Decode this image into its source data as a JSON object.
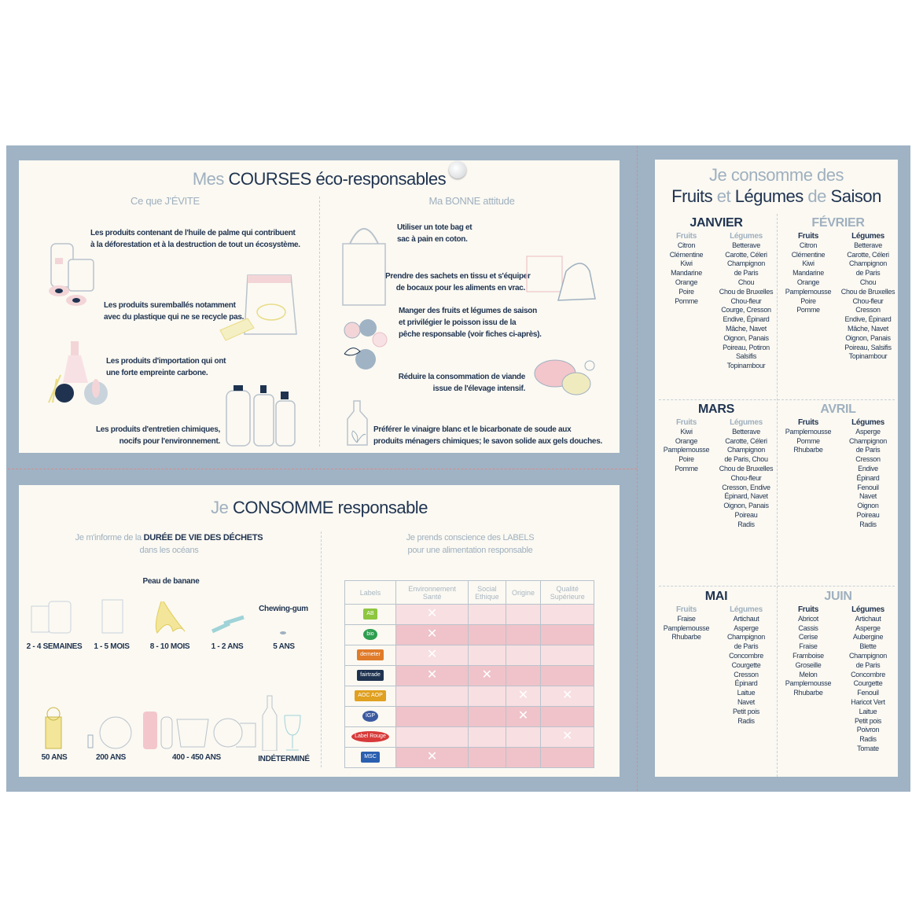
{
  "courses": {
    "title_light": "Mes",
    "title_dark": "COURSES",
    "title_rest": "éco-responsables",
    "avoid_title": "Ce que J'ÉVITE",
    "avoid": [
      [
        "Les produits contenant de l'huile de palme qui contribuent",
        "à la déforestation et à la destruction de tout un écosystème."
      ],
      [
        "Les produits suremballés notamment",
        "avec du plastique qui ne se recycle pas."
      ],
      [
        "Les produits d'importation qui ont",
        "une forte empreinte carbone."
      ],
      [
        "Les produits d'entretien chimiques,",
        "nocifs pour l'environnement."
      ]
    ],
    "good_title": "Ma BONNE attitude",
    "good": [
      [
        "Utiliser un tote bag et",
        "sac à pain en coton."
      ],
      [
        "Prendre des sachets en tissu et s'équiper",
        "de bocaux pour les aliments en vrac."
      ],
      [
        "Manger des fruits et légumes de saison",
        "et privilégier le poisson issu de la",
        "pêche responsable (voir fiches ci-après)."
      ],
      [
        "Réduire la consommation de viande",
        "issue de l'élevage intensif."
      ],
      [
        "Préférer le vinaigre blanc et le bicarbonate de soude aux",
        "produits ménagers chimiques; le savon solide aux gels douches."
      ]
    ]
  },
  "consomme": {
    "title_light": "Je",
    "title_dark": "CONSOMME",
    "title_rest": "responsable",
    "waste_title_light": "Je m'informe de la",
    "waste_title_dark": "DURÉE DE VIE DES DÉCHETS",
    "waste_title_2": "dans les océans",
    "banana_label": "Peau de banane",
    "gum_label": "Chewing-gum",
    "durations": [
      "2 - 4 SEMAINES",
      "1 - 5 MOIS",
      "8 - 10 MOIS",
      "1 - 2 ANS",
      "5 ANS",
      "50 ANS",
      "200 ANS",
      "400 - 450 ANS",
      "INDÉTERMINÉ"
    ],
    "labels_title": [
      "Je prends conscience des LABELS",
      "pour une alimentation responsable"
    ],
    "table": {
      "headers": [
        "Labels",
        "Environnement\nSanté",
        "Social\nEthique",
        "Origine",
        "Qualité\nSupérieure"
      ],
      "rows": [
        {
          "logo": "AB",
          "color": "#8dc63f",
          "marks": [
            true,
            false,
            false,
            false
          ]
        },
        {
          "logo": "bio",
          "color": "#2e9e4f",
          "marks": [
            true,
            false,
            false,
            false
          ]
        },
        {
          "logo": "demeter",
          "color": "#e07b2a",
          "marks": [
            true,
            false,
            false,
            false
          ]
        },
        {
          "logo": "fairtrade",
          "color": "#1f3350",
          "marks": [
            true,
            true,
            false,
            false
          ]
        },
        {
          "logo": "AOC AOP",
          "color": "#e0a020",
          "marks": [
            false,
            false,
            true,
            true
          ]
        },
        {
          "logo": "IGP",
          "color": "#3b5aa0",
          "marks": [
            false,
            false,
            true,
            false
          ]
        },
        {
          "logo": "Label Rouge",
          "color": "#d83a3a",
          "marks": [
            false,
            false,
            false,
            true
          ]
        },
        {
          "logo": "MSC",
          "color": "#2a5fb0",
          "marks": [
            true,
            false,
            false,
            false
          ]
        }
      ]
    }
  },
  "saison": {
    "title_1": "Je consomme des",
    "title_2": [
      "Fruits",
      "et",
      "Légumes",
      "de",
      "Saison"
    ],
    "fruits_header": "Fruits",
    "legumes_header": "Légumes",
    "months": [
      {
        "name": "JANVIER",
        "fruits": [
          "Citron",
          "Clémentine",
          "Kiwi",
          "Mandarine",
          "Orange",
          "Poire",
          "Pomme"
        ],
        "legumes": [
          "Betterave",
          "Carotte, Céleri",
          "Champignon",
          "de Paris",
          "Chou",
          "Chou de Bruxelles",
          "Chou-fleur",
          "Courge, Cresson",
          "Endive, Épinard",
          "Mâche, Navet",
          "Oignon, Panais",
          "Poireau, Potiron",
          "Salsifis",
          "Topinambour"
        ]
      },
      {
        "name": "FÉVRIER",
        "fruits": [
          "Citron",
          "Clémentine",
          "Kiwi",
          "Mandarine",
          "Orange",
          "Pamplemousse",
          "Poire",
          "Pomme"
        ],
        "legumes": [
          "Betterave",
          "Carotte, Céleri",
          "Champignon",
          "de Paris",
          "Chou",
          "Chou de Bruxelles",
          "Chou-fleur",
          "Cresson",
          "Endive, Épinard",
          "Mâche, Navet",
          "Oignon, Panais",
          "Poireau, Salsifis",
          "Topinambour"
        ]
      },
      {
        "name": "MARS",
        "fruits": [
          "Kiwi",
          "Orange",
          "Pamplemousse",
          "Poire",
          "Pomme"
        ],
        "legumes": [
          "Betterave",
          "Carotte, Céleri",
          "Champignon",
          "de Paris, Chou",
          "Chou de Bruxelles",
          "Chou-fleur",
          "Cresson, Endive",
          "Épinard, Navet",
          "Oignon, Panais",
          "Poireau",
          "Radis"
        ]
      },
      {
        "name": "AVRIL",
        "fruits": [
          "Pamplemousse",
          "Pomme",
          "Rhubarbe"
        ],
        "legumes": [
          "Asperge",
          "Champignon",
          "de Paris",
          "Cresson",
          "Endive",
          "Épinard",
          "Fenouil",
          "Navet",
          "Oignon",
          "Poireau",
          "Radis"
        ]
      },
      {
        "name": "MAI",
        "fruits": [
          "Fraise",
          "Pamplemousse",
          "Rhubarbe"
        ],
        "legumes": [
          "Artichaut",
          "Asperge",
          "Champignon",
          "de Paris",
          "Concombre",
          "Courgette",
          "Cresson",
          "Épinard",
          "Laitue",
          "Navet",
          "Petit pois",
          "Radis"
        ]
      },
      {
        "name": "JUIN",
        "fruits": [
          "Abricot",
          "Cassis",
          "Cerise",
          "Fraise",
          "Framboise",
          "Groseille",
          "Melon",
          "Pamplemousse",
          "Rhubarbe"
        ],
        "legumes": [
          "Artichaut",
          "Asperge",
          "Aubergine",
          "Blette",
          "Champignon",
          "de Paris",
          "Concombre",
          "Courgette",
          "Fenouil",
          "Haricot Vert",
          "Laitue",
          "Petit pois",
          "Poivron",
          "Radis",
          "Tomate"
        ]
      }
    ]
  },
  "colors": {
    "navy": "#1f3350",
    "light": "#9fb0bf",
    "board": "#9fb3c4",
    "paper": "#fbf9f2",
    "pink": "#efc3c9"
  }
}
